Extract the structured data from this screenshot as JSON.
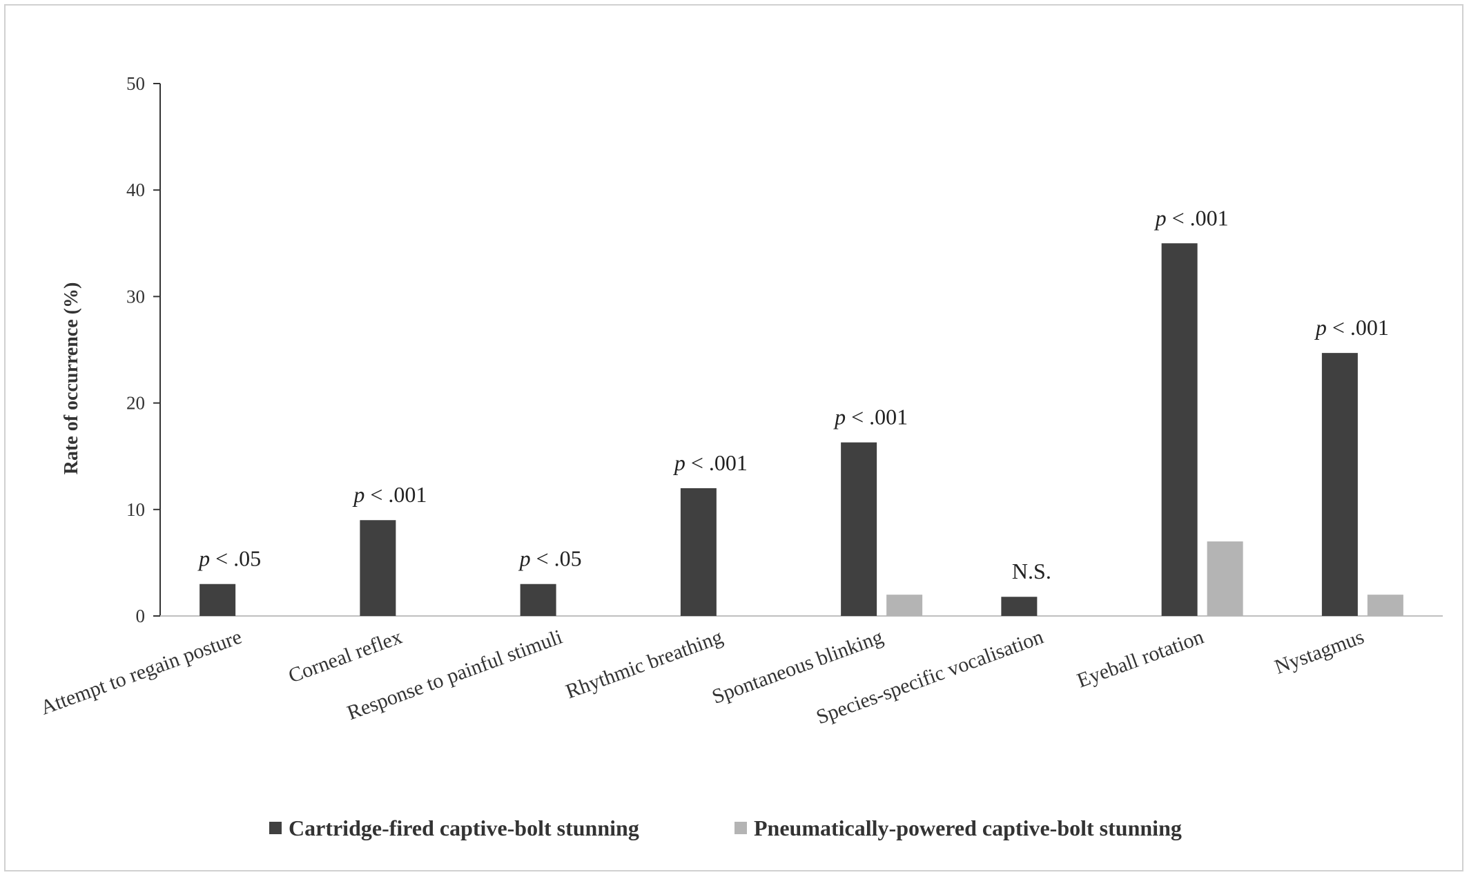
{
  "chart_data": {
    "type": "bar",
    "title": "",
    "xlabel": "",
    "ylabel": "Rate of occurrence (%)",
    "ylim": [
      0,
      50
    ],
    "yticks": [
      "0",
      "10",
      "20",
      "30",
      "40",
      "50"
    ],
    "grid": false,
    "legend_position": "bottom",
    "categories": [
      "Attempt to regain posture",
      "Corneal reflex",
      "Response to painful stimuli",
      "Rhythmic breathing",
      "Spontaneous blinking",
      "Species-specific vocalisation",
      "Eyeball rotation",
      "Nystagmus"
    ],
    "series": [
      {
        "name": "Cartridge-fired captive-bolt stunning",
        "color": "#404040",
        "values": [
          3,
          9,
          3,
          12,
          16.3,
          1.8,
          35,
          24.7
        ]
      },
      {
        "name": "Pneumatically-powered captive-bolt stunning",
        "color": "#b4b4b4",
        "values": [
          0,
          0,
          0,
          0,
          2,
          0,
          7,
          2
        ]
      }
    ],
    "annotations": [
      {
        "p": "p",
        "text": " < .05"
      },
      {
        "p": "p",
        "text": " < .001"
      },
      {
        "p": "p",
        "text": " < .05"
      },
      {
        "p": "p",
        "text": " < .001"
      },
      {
        "p": "p",
        "text": " < .001"
      },
      {
        "p": "",
        "text": "N.S."
      },
      {
        "p": "p",
        "text": " < .001"
      },
      {
        "p": "p",
        "text": " < .001"
      }
    ]
  }
}
